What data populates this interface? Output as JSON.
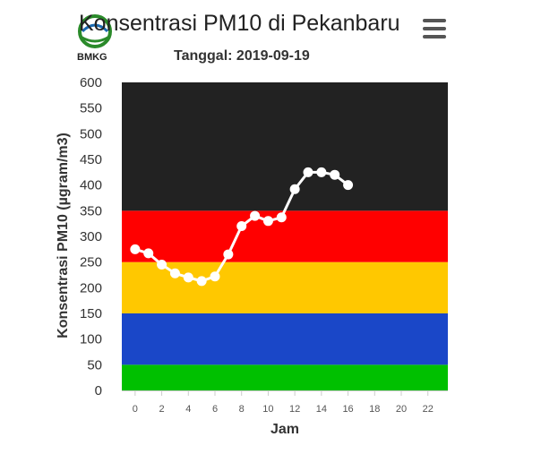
{
  "header": {
    "title": "Konsentrasi PM10 di Pekanbaru",
    "subtitle": "Tanggal: 2019-09-19",
    "logo_text": "BMKG",
    "menu_icon": "hamburger-menu-icon"
  },
  "chart_data": {
    "type": "line",
    "title": "Konsentrasi PM10 di Pekanbaru",
    "subtitle": "Tanggal: 2019-09-19",
    "xlabel": "Jam",
    "ylabel": "Konsentrasi PM10 (µgram/m3)",
    "xlim": [
      -1,
      23.5
    ],
    "ylim": [
      0,
      600
    ],
    "x_ticks": [
      0,
      2,
      4,
      6,
      8,
      10,
      12,
      14,
      16,
      18,
      20,
      22
    ],
    "y_ticks": [
      0,
      50,
      100,
      150,
      200,
      250,
      300,
      350,
      400,
      450,
      500,
      550,
      600
    ],
    "bands": [
      {
        "from": 0,
        "to": 50,
        "color": "#00c000"
      },
      {
        "from": 50,
        "to": 150,
        "color": "#1a47c8"
      },
      {
        "from": 150,
        "to": 250,
        "color": "#ffc800"
      },
      {
        "from": 250,
        "to": 350,
        "color": "#ff0000"
      },
      {
        "from": 350,
        "to": 600,
        "color": "#222222"
      }
    ],
    "series": [
      {
        "color": "#ffffff",
        "x": [
          0,
          1,
          2,
          3,
          4,
          5,
          6,
          7,
          8,
          9,
          10,
          11,
          12,
          13,
          14,
          15,
          16
        ],
        "values": [
          275,
          267,
          245,
          228,
          220,
          213,
          222,
          265,
          320,
          340,
          330,
          337,
          392,
          425,
          425,
          420,
          400
        ]
      }
    ]
  }
}
